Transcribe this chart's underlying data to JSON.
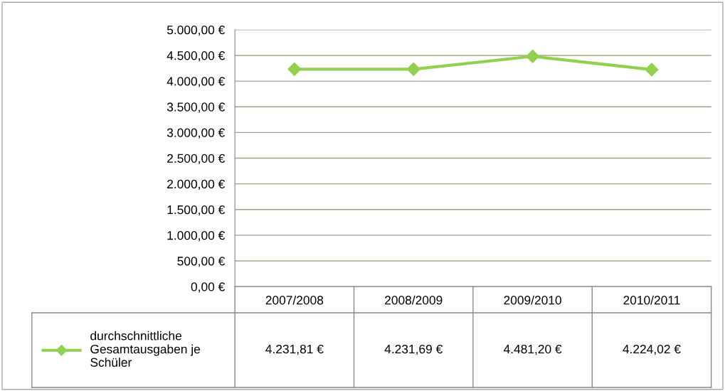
{
  "chart_data": {
    "type": "line",
    "categories": [
      "2007/2008",
      "2008/2009",
      "2009/2010",
      "2010/2011"
    ],
    "series": [
      {
        "name": "durchschnittliche\nGesamtausgaben je\nSchüler",
        "color": "#92d050",
        "values": [
          4231.81,
          4231.69,
          4481.2,
          4224.02
        ],
        "value_labels": [
          "4.231,81 €",
          "4.231,69 €",
          "4.481,20 €",
          "4.224,02 €"
        ]
      }
    ],
    "ylim": [
      0,
      5000
    ],
    "yticks": [
      {
        "value": 0,
        "label": "0,00 €"
      },
      {
        "value": 500,
        "label": "500,00 €"
      },
      {
        "value": 1000,
        "label": "1.000,00 €"
      },
      {
        "value": 1500,
        "label": "1.500,00 €"
      },
      {
        "value": 2000,
        "label": "2.000,00 €"
      },
      {
        "value": 2500,
        "label": "2.500,00 €"
      },
      {
        "value": 3000,
        "label": "3.000,00 €"
      },
      {
        "value": 3500,
        "label": "3.500,00 €"
      },
      {
        "value": 4000,
        "label": "4.000,00 €"
      },
      {
        "value": 4500,
        "label": "4.500,00 €"
      },
      {
        "value": 5000,
        "label": "5.000,00 €"
      }
    ],
    "grid": "y",
    "legend": "bottom left",
    "marker": "diamond",
    "line_style": "solid"
  }
}
